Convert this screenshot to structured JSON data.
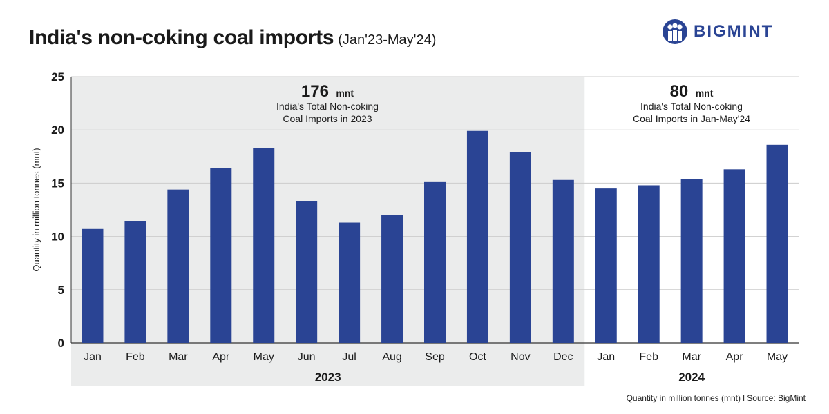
{
  "header": {
    "title": "India's non-coking coal imports",
    "subtitle": "(Jan'23-May'24)",
    "logo_text": "BIGMINT",
    "logo_icon": "bigmint-people-icon"
  },
  "footer": {
    "note": "Quantity in million tonnes (mnt)  l  Source: BigMint"
  },
  "annotations": {
    "y2023": {
      "value": "176",
      "unit": "mnt",
      "line1": "India's Total Non-coking",
      "line2": "Coal Imports in 2023"
    },
    "y2024": {
      "value": "80",
      "unit": "mnt",
      "line1": "India's Total Non-coking",
      "line2": "Coal Imports in Jan-May'24"
    }
  },
  "colors": {
    "bar": "#2a4494",
    "shade": "#ebecec",
    "grid": "#cccccc",
    "axis": "#333333",
    "brand": "#2a4494"
  },
  "chart_data": {
    "type": "bar",
    "title": "India's non-coking coal imports",
    "ylabel": "Quantity in million tonnes (mnt)",
    "ylim": [
      0,
      25
    ],
    "yticks": [
      0,
      5,
      10,
      15,
      20,
      25
    ],
    "grid": true,
    "categories": [
      "Jan",
      "Feb",
      "Mar",
      "Apr",
      "May",
      "Jun",
      "Jul",
      "Aug",
      "Sep",
      "Oct",
      "Nov",
      "Dec",
      "Jan",
      "Feb",
      "Mar",
      "Apr",
      "May"
    ],
    "values": [
      10.7,
      11.4,
      14.4,
      16.4,
      18.3,
      13.3,
      11.3,
      12.0,
      15.1,
      19.9,
      17.9,
      15.3,
      14.5,
      14.8,
      15.4,
      16.3,
      18.6
    ],
    "groups": [
      {
        "label": "2023",
        "count": 12,
        "shaded": true
      },
      {
        "label": "2024",
        "count": 5,
        "shaded": false
      }
    ]
  }
}
